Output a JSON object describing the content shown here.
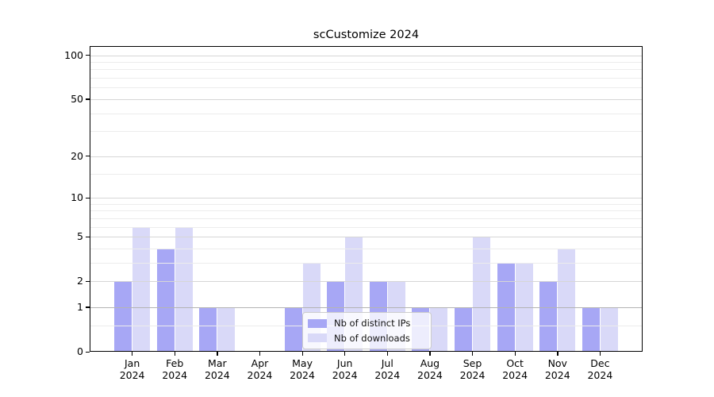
{
  "title": "scCustomize 2024",
  "legend": {
    "items": [
      {
        "label": "Nb of distinct IPs"
      },
      {
        "label": "Nb of downloads"
      }
    ]
  },
  "chart_data": {
    "type": "bar",
    "title": "scCustomize 2024",
    "categories": [
      "Jan",
      "Feb",
      "Mar",
      "Apr",
      "May",
      "Jun",
      "Jul",
      "Aug",
      "Sep",
      "Oct",
      "Nov",
      "Dec"
    ],
    "category_year": "2024",
    "series": [
      {
        "name": "Nb of distinct IPs",
        "color": "#a7a7f5",
        "values": [
          2,
          4,
          1,
          0,
          1,
          2,
          2,
          1,
          1,
          3,
          2,
          1
        ]
      },
      {
        "name": "Nb of downloads",
        "color": "#d9d9f8",
        "values": [
          6,
          6,
          1,
          0,
          3,
          5,
          2,
          1,
          5,
          3,
          4,
          1
        ]
      }
    ],
    "y_scale": "log1p",
    "y_ticks": [
      100,
      50,
      20,
      10,
      5,
      2,
      1,
      0
    ],
    "y_minor_ticks": [
      0.5,
      3,
      4,
      6,
      7,
      8,
      9,
      15,
      30,
      40,
      60,
      70,
      80,
      90
    ],
    "ylim": [
      0,
      116
    ],
    "xlabel": "",
    "ylabel": "",
    "grid": true,
    "legend_position": "lower center inside plot"
  },
  "colors": {
    "bar_dark": "#a7a7f5",
    "bar_light": "#d9d9f8",
    "grid_major": "#d6d6d6",
    "grid_major_one": "#b4b4b4",
    "grid_minor": "#ececec",
    "spine": "#000000",
    "background": "#ffffff"
  }
}
